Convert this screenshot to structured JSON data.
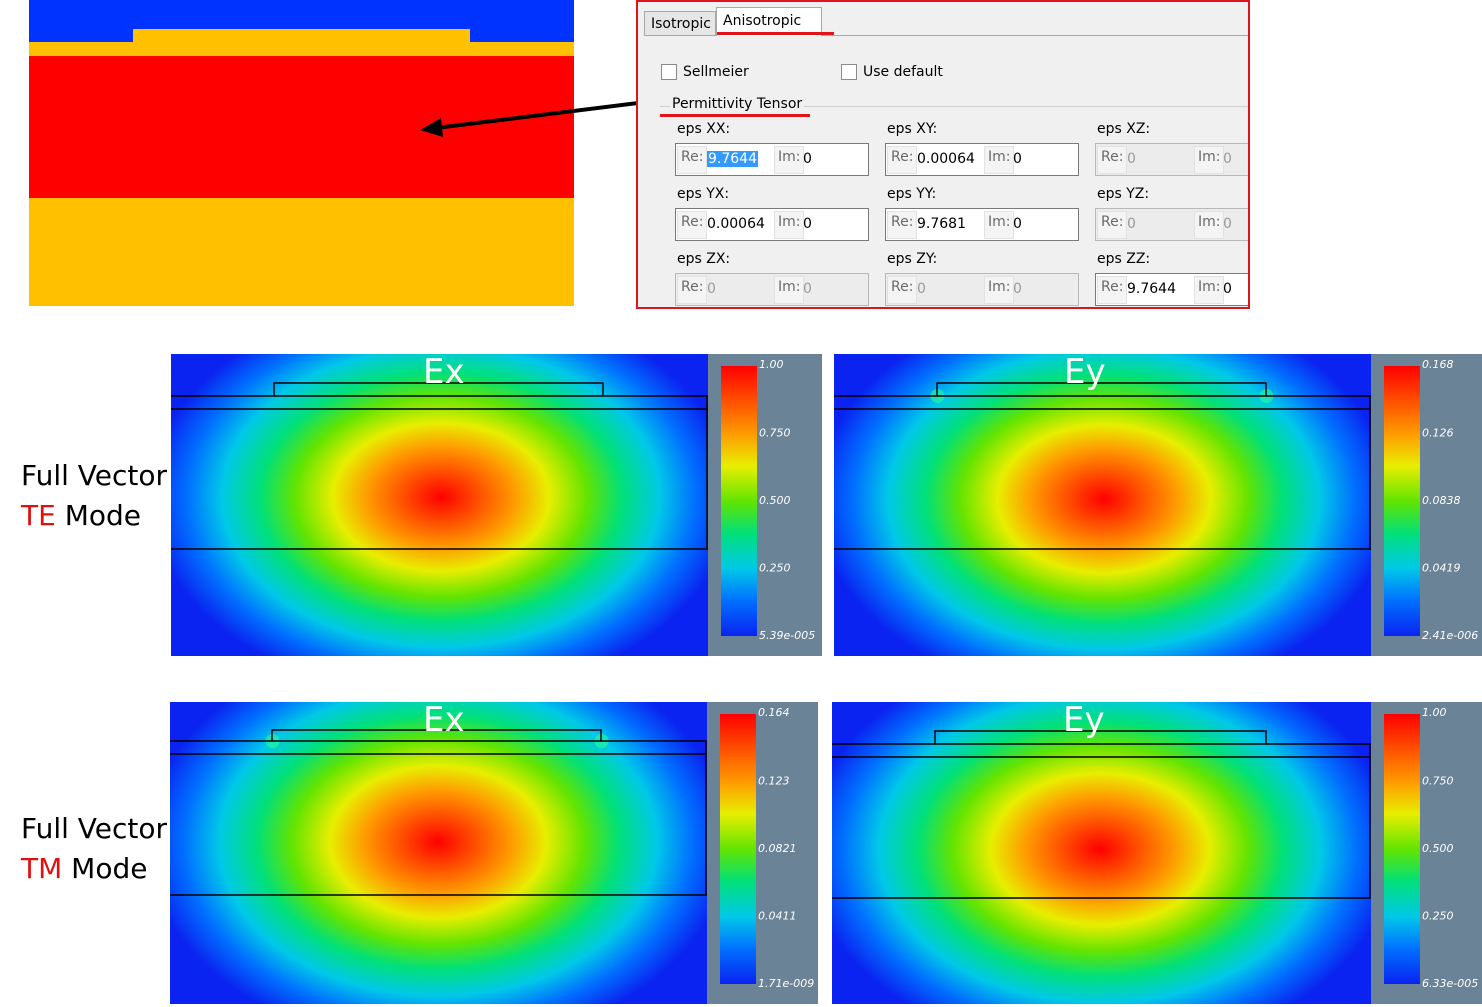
{
  "colors": {
    "cladding_blue": "#0033ff",
    "substrate_amber": "#ffc000",
    "core_red": "#ff0000",
    "highlight_red": "#e0141b",
    "colorbar_panel": "#6b8396"
  },
  "dialog": {
    "tabs": [
      {
        "label": "Isotropic",
        "active": false
      },
      {
        "label": "Anisotropic",
        "active": true
      }
    ],
    "checkboxes": [
      {
        "label": "Sellmeier",
        "checked": false
      },
      {
        "label": "Use default",
        "checked": false
      }
    ],
    "group_title": "Permittivity Tensor",
    "re_label": "Re:",
    "im_label": "Im:",
    "tensor": [
      {
        "label": "eps XX:",
        "re": "9.7644",
        "im": "0",
        "enabled": true,
        "selected": true
      },
      {
        "label": "eps XY:",
        "re": "0.00064",
        "im": "0",
        "enabled": true
      },
      {
        "label": "eps XZ:",
        "re": "0",
        "im": "0",
        "enabled": false
      },
      {
        "label": "eps YX:",
        "re": "0.00064",
        "im": "0",
        "enabled": true
      },
      {
        "label": "eps YY:",
        "re": "9.7681",
        "im": "0",
        "enabled": true
      },
      {
        "label": "eps YZ:",
        "re": "0",
        "im": "0",
        "enabled": false
      },
      {
        "label": "eps ZX:",
        "re": "0",
        "im": "0",
        "enabled": false
      },
      {
        "label": "eps ZY:",
        "re": "0",
        "im": "0",
        "enabled": false
      },
      {
        "label": "eps ZZ:",
        "re": "9.7644",
        "im": "0",
        "enabled": true
      }
    ]
  },
  "mode_labels": [
    {
      "line1": "Full Vector",
      "mode": "TE",
      "suffix": " Mode"
    },
    {
      "line1": "Full Vector",
      "mode": "TM",
      "suffix": " Mode"
    }
  ],
  "field_plots": [
    {
      "component": "Ex",
      "mode": "TE",
      "colorbar_ticks": [
        "1.00",
        "0.750",
        "0.500",
        "0.250",
        "5.39e-005"
      ]
    },
    {
      "component": "Ey",
      "mode": "TE",
      "colorbar_ticks": [
        "0.168",
        "0.126",
        "0.0838",
        "0.0419",
        "2.41e-006"
      ]
    },
    {
      "component": "Ex",
      "mode": "TM",
      "colorbar_ticks": [
        "0.164",
        "0.123",
        "0.0821",
        "0.0411",
        "1.71e-009"
      ]
    },
    {
      "component": "Ey",
      "mode": "TM",
      "colorbar_ticks": [
        "1.00",
        "0.750",
        "0.500",
        "0.250",
        "6.33e-005"
      ]
    }
  ]
}
